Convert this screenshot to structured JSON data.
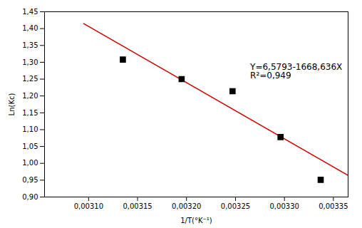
{
  "chart_data": {
    "type": "scatter",
    "xlabel": "1/T(°K⁻¹)",
    "ylabel": "Ln(Kc)",
    "xlim": [
      0.003055,
      0.003365
    ],
    "ylim": [
      0.9,
      1.45
    ],
    "xticks": [
      {
        "value": 0.0031,
        "label": "0,00310"
      },
      {
        "value": 0.00315,
        "label": "0,00315"
      },
      {
        "value": 0.0032,
        "label": "0,00320"
      },
      {
        "value": 0.00325,
        "label": "0,00325"
      },
      {
        "value": 0.0033,
        "label": "0,00330"
      },
      {
        "value": 0.00335,
        "label": "0,00335"
      }
    ],
    "yticks": [
      {
        "value": 0.9,
        "label": "0,90"
      },
      {
        "value": 0.95,
        "label": "0,95"
      },
      {
        "value": 1.0,
        "label": "1,00"
      },
      {
        "value": 1.05,
        "label": "1,05"
      },
      {
        "value": 1.1,
        "label": "1,10"
      },
      {
        "value": 1.15,
        "label": "1,15"
      },
      {
        "value": 1.2,
        "label": "1,20"
      },
      {
        "value": 1.25,
        "label": "1,25"
      },
      {
        "value": 1.3,
        "label": "1,30"
      },
      {
        "value": 1.35,
        "label": "1,35"
      },
      {
        "value": 1.4,
        "label": "1,40"
      },
      {
        "value": 1.45,
        "label": "1,45"
      }
    ],
    "grid": false,
    "series": [
      {
        "type": "line",
        "color": "#cc0000",
        "line_style": "solid",
        "x": [
          0.003095,
          0.003365
        ],
        "values": [
          1.41487158,
          0.96433986
        ]
      },
      {
        "type": "scatter",
        "color": "black",
        "marker": "square",
        "x": [
          0.003135,
          0.003195,
          0.003247,
          0.003296,
          0.003337
        ],
        "values": [
          1.308,
          1.25,
          1.214,
          1.078,
          0.951
        ]
      }
    ],
    "annotations": [
      {
        "text": "Y=6,5793-1668,636X\nR²=0,949",
        "x": 0.003265,
        "y": 1.295
      }
    ]
  }
}
